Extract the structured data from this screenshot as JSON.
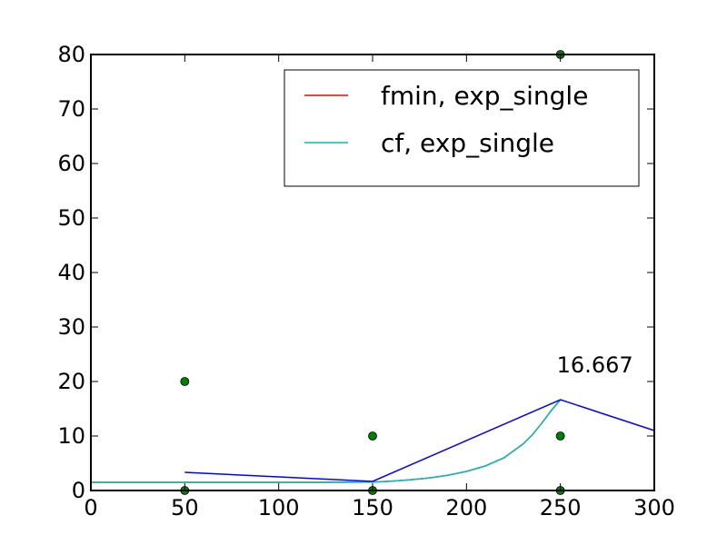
{
  "chart_data": {
    "type": "line",
    "title": "",
    "xlabel": "",
    "ylabel": "",
    "xlim": [
      0,
      300
    ],
    "ylim": [
      0,
      80
    ],
    "x_ticks": [
      0,
      50,
      100,
      150,
      200,
      250,
      300
    ],
    "y_ticks": [
      0,
      10,
      20,
      30,
      40,
      50,
      60,
      70,
      80
    ],
    "grid": false,
    "legend": {
      "placement": "top-right"
    },
    "series": [
      {
        "name": "fmin, exp_single",
        "kind": "line",
        "color": "#ff0000",
        "x": [
          0,
          25,
          50,
          75,
          100,
          125,
          150,
          160,
          170,
          180,
          190,
          200,
          210,
          220,
          230,
          235,
          240,
          245,
          250
        ],
        "y": [
          1.5,
          1.5,
          1.5,
          1.5,
          1.5,
          1.5,
          1.55,
          1.7,
          1.95,
          2.3,
          2.8,
          3.5,
          4.5,
          6.0,
          8.5,
          10.2,
          12.3,
          14.6,
          16.667
        ]
      },
      {
        "name": "cf, exp_single",
        "kind": "line",
        "color": "#00bfbf",
        "x": [
          0,
          25,
          50,
          75,
          100,
          125,
          150,
          160,
          170,
          180,
          190,
          200,
          210,
          220,
          230,
          235,
          240,
          245,
          250
        ],
        "y": [
          1.5,
          1.5,
          1.5,
          1.5,
          1.5,
          1.5,
          1.55,
          1.7,
          1.95,
          2.3,
          2.8,
          3.5,
          4.5,
          6.0,
          8.5,
          10.2,
          12.3,
          14.6,
          16.667
        ]
      },
      {
        "kind": "line",
        "color": "#0000ff",
        "x": [
          50,
          150,
          250,
          300
        ],
        "y": [
          3.33,
          1.67,
          16.667,
          11.0
        ]
      },
      {
        "kind": "scatter",
        "color": "#008000",
        "x": [
          50,
          50,
          150,
          150,
          250,
          250,
          250
        ],
        "y": [
          20,
          0,
          10,
          0,
          80,
          10,
          0
        ]
      }
    ],
    "annotations": [
      {
        "text": "16.667",
        "x": 250,
        "y": 16.667
      }
    ]
  }
}
